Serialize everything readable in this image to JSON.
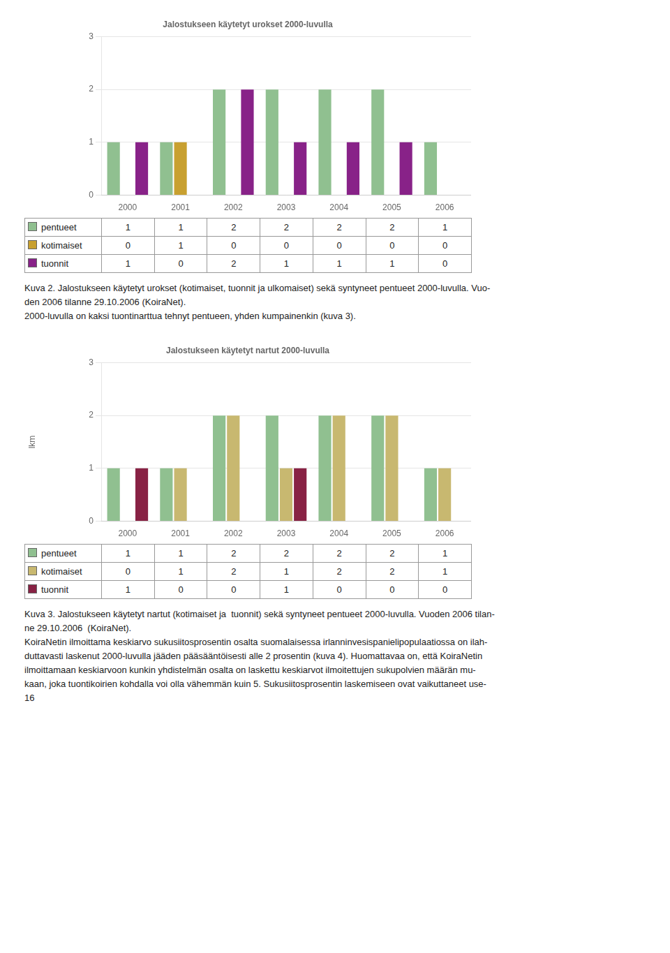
{
  "chart_data": [
    {
      "type": "bar",
      "title": "Jalostukseen käytetyt urokset 2000-luvulla",
      "categories": [
        "2000",
        "2001",
        "2002",
        "2003",
        "2004",
        "2005",
        "2006"
      ],
      "series": [
        {
          "name": "pentueet",
          "color": "#90C090",
          "values": [
            1,
            1,
            2,
            2,
            2,
            2,
            1
          ]
        },
        {
          "name": "kotimaiset",
          "color": "#C8A030",
          "values": [
            0,
            1,
            0,
            0,
            0,
            0,
            0
          ]
        },
        {
          "name": "tuonnit",
          "color": "#882288",
          "values": [
            1,
            0,
            2,
            1,
            1,
            1,
            0
          ]
        }
      ],
      "ylim": [
        0,
        3
      ],
      "yticks": [
        0,
        1,
        2,
        3
      ],
      "grid": true,
      "legend": "bottom",
      "annotations": [
        "Kuva 2. Jalostukseen käytetyt urokset (kotimaiset, tuonnit ja ulkomaiset) sekä syntyneet pentueet 2000-luvulla. Vuo-",
        "den 2006 tilanne 29.10.2006 (KoiraNet).",
        "2000-luvulla on kaksi tuontinarttua tehnyt pentueen, yhden kumpainenkin (kuva 3)."
      ]
    },
    {
      "type": "bar",
      "title": "Jalostukseen käytetyt nartut 2000-luvulla",
      "ylabel": "lkm",
      "categories": [
        "2000",
        "2001",
        "2002",
        "2003",
        "2004",
        "2005",
        "2006"
      ],
      "series": [
        {
          "name": "pentueet",
          "color": "#90C090",
          "values": [
            1,
            1,
            2,
            2,
            2,
            2,
            1
          ]
        },
        {
          "name": "kotimaiset",
          "color": "#C8B870",
          "values": [
            0,
            1,
            2,
            1,
            2,
            2,
            1
          ]
        },
        {
          "name": "tuonnit",
          "color": "#882244",
          "values": [
            1,
            0,
            0,
            1,
            0,
            0,
            0
          ]
        }
      ],
      "ylim": [
        0,
        3
      ],
      "yticks": [
        0,
        1,
        2,
        3
      ],
      "grid": true,
      "legend": "bottom",
      "annotations": [
        "Kuva 3. Jalostukseen käytetyt nartut (kotimaiset ja  tuonnit) sekä syntyneet pentueet 2000-luvulla. Vuoden 2006 tilan-",
        "ne 29.10.2006  (KoiraNet).",
        "KoiraNetin ilmoittama keskiarvo sukusiitosprosentin osalta suomalaisessa irlanninvesispanielipopulaatiossa on ilah-",
        "duttavasti laskenut 2000-luvulla jääden pääsääntöisesti alle 2 prosentin (kuva 4). Huomattavaa on, että KoiraNetin",
        "ilmoittamaan keskiarvoon kunkin yhdistelmän osalta on laskettu keskiarvot ilmoitettujen sukupolvien määrän mu-",
        "kaan, joka tuontikoirien kohdalla voi olla vähemmän kuin 5. Sukusiitosprosentin laskemiseen ovat vaikuttaneet use-",
        "16"
      ]
    }
  ]
}
